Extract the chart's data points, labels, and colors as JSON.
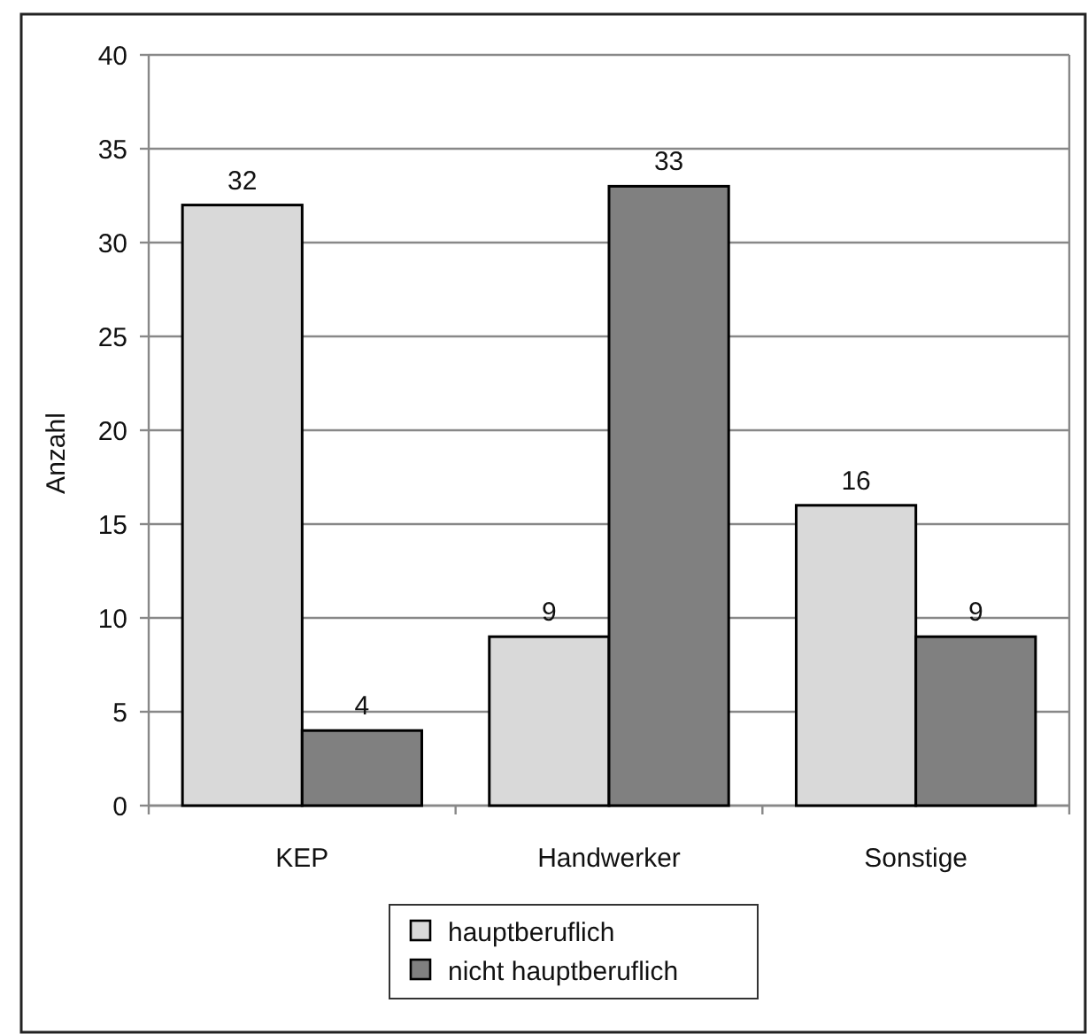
{
  "chart_data": {
    "type": "bar",
    "ylabel": "Anzahl",
    "categories": [
      "KEP",
      "Handwerker",
      "Sonstige"
    ],
    "series": [
      {
        "name": "hauptberuflich",
        "color": "#d9d9d9",
        "values": [
          32,
          9,
          16
        ]
      },
      {
        "name": "nicht hauptberuflich",
        "color": "#808080",
        "values": [
          4,
          33,
          9
        ]
      }
    ],
    "ylim": [
      0,
      40
    ],
    "yticks": [
      0,
      5,
      10,
      15,
      20,
      25,
      30,
      35,
      40
    ],
    "grid": "y",
    "legend": "bottom",
    "data_labels": true
  }
}
